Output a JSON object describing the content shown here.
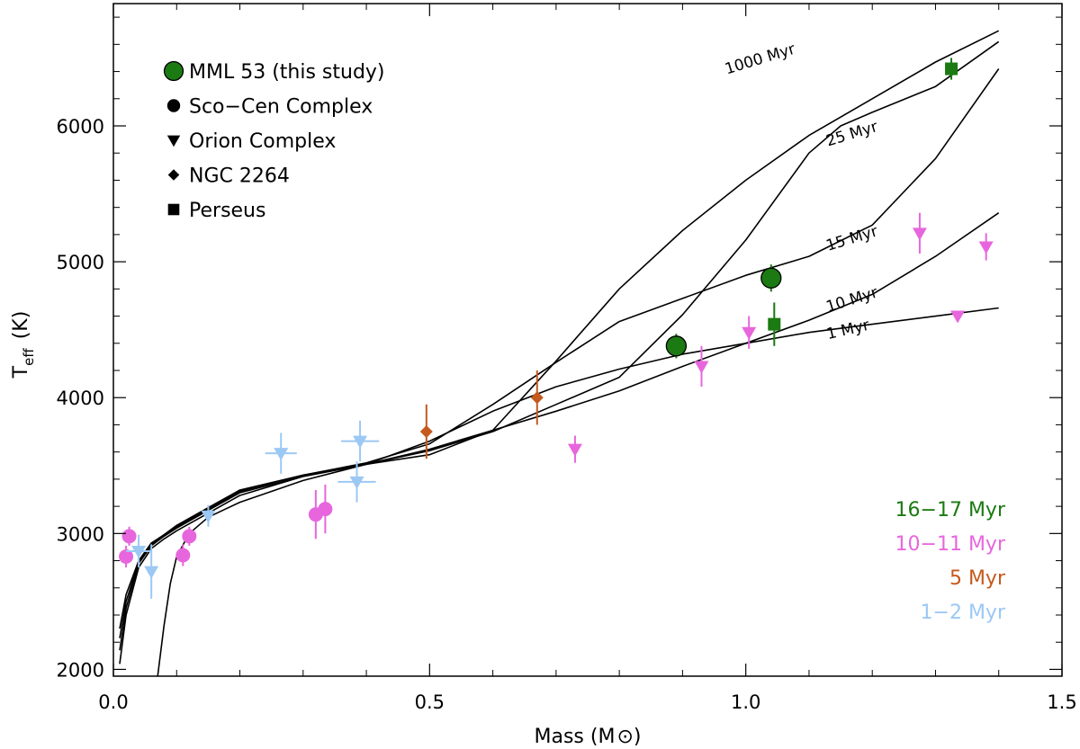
{
  "chart_data": {
    "type": "scatter",
    "xlabel": "Mass (M",
    "xlabel_suffix": ")",
    "ylabel_main": "T",
    "ylabel_sub": "eff",
    "ylabel_suffix": "(K)",
    "xlim": [
      0.0,
      1.5
    ],
    "ylim": [
      1950,
      6900
    ],
    "xticks": [
      {
        "value": 0.0,
        "label": "0.0"
      },
      {
        "value": 0.5,
        "label": "0.5"
      },
      {
        "value": 1.0,
        "label": "1.0"
      },
      {
        "value": 1.5,
        "label": "1.5"
      }
    ],
    "yticks": [
      {
        "value": 2000,
        "label": "2000"
      },
      {
        "value": 3000,
        "label": "3000"
      },
      {
        "value": 4000,
        "label": "4000"
      },
      {
        "value": 5000,
        "label": "5000"
      },
      {
        "value": 6000,
        "label": "6000"
      }
    ],
    "grid": false,
    "legend_placement": "top-left",
    "legend": [
      {
        "label": "MML 53 (this study)",
        "marker": "circle-large",
        "color": "#1b7a12"
      },
      {
        "label": "Sco−Cen Complex",
        "marker": "circle",
        "color": "#000000"
      },
      {
        "label": "Orion Complex",
        "marker": "triangle-down",
        "color": "#000000"
      },
      {
        "label": "NGC 2264",
        "marker": "diamond",
        "color": "#000000"
      },
      {
        "label": "Perseus",
        "marker": "square",
        "color": "#000000"
      }
    ],
    "age_legend": [
      {
        "label": "16−17 Myr",
        "color": "#1b7a12"
      },
      {
        "label": "10−11 Myr",
        "color": "#e766dd"
      },
      {
        "label": "5 Myr",
        "color": "#c45a1d"
      },
      {
        "label": "1−2 Myr",
        "color": "#9cc8f4"
      }
    ],
    "isochrones": [
      {
        "label": "1000 Myr",
        "label_at": [
          0.97,
          6380
        ],
        "label_angle": -17,
        "x": [
          0.01,
          0.02,
          0.04,
          0.06,
          0.08,
          0.1,
          0.15,
          0.2,
          0.3,
          0.4,
          0.5,
          0.6,
          0.7,
          0.8,
          0.9,
          1.0,
          1.1,
          1.2,
          1.3,
          1.4
        ],
        "y": [
          2040,
          2400,
          2750,
          2890,
          2960,
          3020,
          3150,
          3280,
          3420,
          3510,
          3580,
          3760,
          4270,
          4800,
          5230,
          5600,
          5930,
          6200,
          6470,
          6700
        ]
      },
      {
        "label": "25 Myr",
        "label_at": [
          1.13,
          5850
        ],
        "label_angle": -17,
        "x": [
          0.01,
          0.02,
          0.04,
          0.06,
          0.08,
          0.1,
          0.15,
          0.2,
          0.3,
          0.4,
          0.5,
          0.6,
          0.7,
          0.8,
          0.9,
          1.0,
          1.1,
          1.15,
          1.2,
          1.3,
          1.4
        ],
        "y": [
          2140,
          2450,
          2780,
          2910,
          2980,
          3040,
          3170,
          3300,
          3420,
          3510,
          3610,
          3750,
          3950,
          4150,
          4610,
          5160,
          5800,
          6000,
          6100,
          6290,
          6620
        ]
      },
      {
        "label": "15 Myr",
        "label_at": [
          1.13,
          5080
        ],
        "label_angle": -17,
        "x": [
          0.01,
          0.02,
          0.04,
          0.06,
          0.08,
          0.1,
          0.15,
          0.2,
          0.3,
          0.4,
          0.5,
          0.6,
          0.7,
          0.8,
          0.9,
          1.0,
          1.1,
          1.2,
          1.3,
          1.4
        ],
        "y": [
          2230,
          2500,
          2790,
          2920,
          2990,
          3050,
          3180,
          3310,
          3430,
          3520,
          3660,
          3950,
          4260,
          4560,
          4730,
          4900,
          5040,
          5270,
          5760,
          6420
        ]
      },
      {
        "label": "10 Myr",
        "label_at": [
          1.13,
          4630
        ],
        "label_angle": -17,
        "x": [
          0.01,
          0.02,
          0.04,
          0.06,
          0.08,
          0.1,
          0.15,
          0.2,
          0.3,
          0.4,
          0.5,
          0.6,
          0.7,
          0.8,
          0.9,
          1.0,
          1.1,
          1.2,
          1.3,
          1.4
        ],
        "y": [
          2300,
          2550,
          2800,
          2930,
          2990,
          3060,
          3190,
          3320,
          3430,
          3510,
          3620,
          3760,
          3900,
          4050,
          4230,
          4400,
          4570,
          4760,
          5040,
          5360
        ]
      },
      {
        "label": "1 Myr",
        "label_at": [
          1.13,
          4430
        ],
        "label_angle": -13,
        "x": [
          0.07,
          0.08,
          0.09,
          0.1,
          0.12,
          0.15,
          0.2,
          0.3,
          0.4,
          0.5,
          0.6,
          0.7,
          0.8,
          0.9,
          1.0,
          1.1,
          1.2,
          1.3,
          1.4
        ],
        "y": [
          1950,
          2320,
          2630,
          2830,
          3000,
          3120,
          3230,
          3390,
          3510,
          3680,
          3900,
          4080,
          4210,
          4320,
          4400,
          4480,
          4540,
          4600,
          4660
        ]
      }
    ],
    "series": [
      {
        "name": "MML 53 (this study)",
        "marker": "circle-large",
        "color": "#1b7a12",
        "points": [
          {
            "x": 0.89,
            "y": 4380,
            "yerr": 90
          },
          {
            "x": 1.04,
            "y": 4880,
            "yerr": 100
          }
        ]
      },
      {
        "name": "Sco−Cen Complex",
        "marker": "circle",
        "color": "#e766dd",
        "points": [
          {
            "x": 0.02,
            "y": 2830,
            "yerr": 80
          },
          {
            "x": 0.025,
            "y": 2980,
            "yerr": 70
          },
          {
            "x": 0.11,
            "y": 2840,
            "yerr": 80
          },
          {
            "x": 0.12,
            "y": 2980,
            "yerr": 70
          },
          {
            "x": 0.32,
            "y": 3140,
            "yerr": 180
          },
          {
            "x": 0.335,
            "y": 3180,
            "yerr": 180
          }
        ]
      },
      {
        "name": "Orion Complex",
        "marker": "triangle-down",
        "color": "#9cc8f4",
        "points": [
          {
            "x": 0.04,
            "y": 2870,
            "yerr": 120,
            "xerr": 0.02
          },
          {
            "x": 0.06,
            "y": 2720,
            "yerr": 200
          },
          {
            "x": 0.15,
            "y": 3130,
            "yerr": 80
          },
          {
            "x": 0.265,
            "y": 3590,
            "yerr": 150,
            "xerr": 0.025
          },
          {
            "x": 0.385,
            "y": 3380,
            "yerr": 150,
            "xerr": 0.03
          },
          {
            "x": 0.39,
            "y": 3680,
            "yerr": 150,
            "xerr": 0.03
          }
        ]
      },
      {
        "name": "Orion Complex (10−11 Myr)",
        "marker": "triangle-down",
        "color": "#e766dd",
        "points": [
          {
            "x": 0.73,
            "y": 3620,
            "yerr": 100
          },
          {
            "x": 0.93,
            "y": 4230,
            "yerr": 150
          },
          {
            "x": 1.005,
            "y": 4480,
            "yerr": 120
          },
          {
            "x": 1.275,
            "y": 5210,
            "yerr": 150
          },
          {
            "x": 1.335,
            "y": 4600,
            "yerr": 40
          },
          {
            "x": 1.38,
            "y": 5110,
            "yerr": 100
          }
        ]
      },
      {
        "name": "NGC 2264",
        "marker": "diamond",
        "color": "#c45a1d",
        "points": [
          {
            "x": 0.495,
            "y": 3750,
            "yerr": 200
          },
          {
            "x": 0.67,
            "y": 4000,
            "yerr": 200
          }
        ]
      },
      {
        "name": "Perseus",
        "marker": "square",
        "color": "#1b7a12",
        "points": [
          {
            "x": 1.045,
            "y": 4540,
            "yerr": 160
          },
          {
            "x": 1.325,
            "y": 6420,
            "yerr": 80
          }
        ]
      }
    ]
  }
}
